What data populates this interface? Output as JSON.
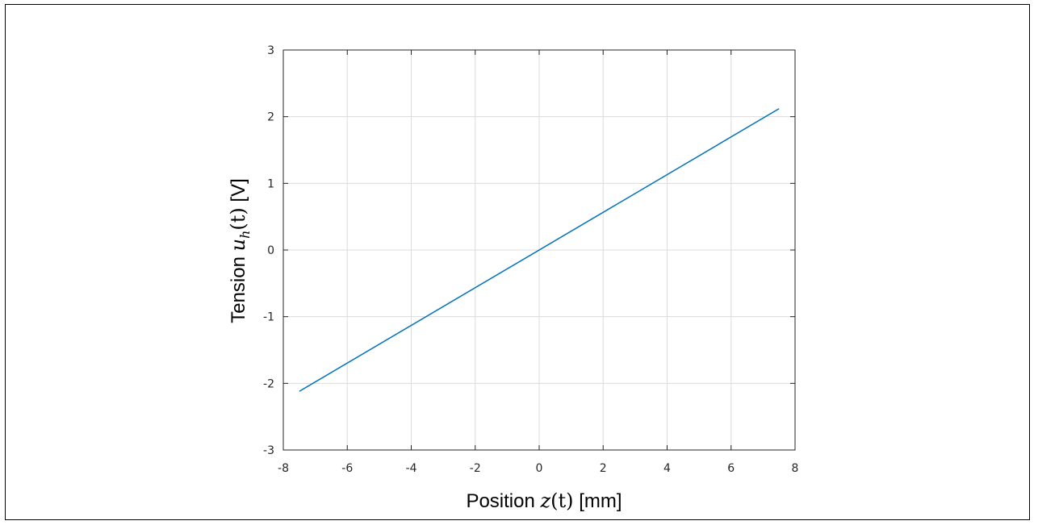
{
  "chart_data": {
    "type": "line",
    "x": [
      -7.5,
      7.5
    ],
    "series": [
      {
        "values": [
          -2.12,
          2.12
        ],
        "color": "#0072BD"
      }
    ],
    "xlim": [
      -8,
      8
    ],
    "ylim": [
      -3,
      3
    ],
    "xticks": [
      -8,
      -6,
      -4,
      -2,
      0,
      2,
      4,
      6,
      8
    ],
    "yticks": [
      -3,
      -2,
      -1,
      0,
      1,
      2,
      3
    ],
    "xtick_labels": [
      "-8",
      "-6",
      "-4",
      "-2",
      "0",
      "2",
      "4",
      "6",
      "8"
    ],
    "ytick_labels": [
      "-3",
      "-2",
      "-1",
      "0",
      "1",
      "2",
      "3"
    ],
    "xlabel": {
      "prefix": "Position ",
      "var": "z",
      "arg": "(t)",
      "suffix": " [mm]"
    },
    "ylabel": {
      "prefix": "Tension ",
      "var": "u",
      "sub": "h",
      "arg": "(t)",
      "suffix": " [V]"
    },
    "grid": true,
    "colors": {
      "grid": "#dcdcdc",
      "axis": "#262626"
    }
  }
}
